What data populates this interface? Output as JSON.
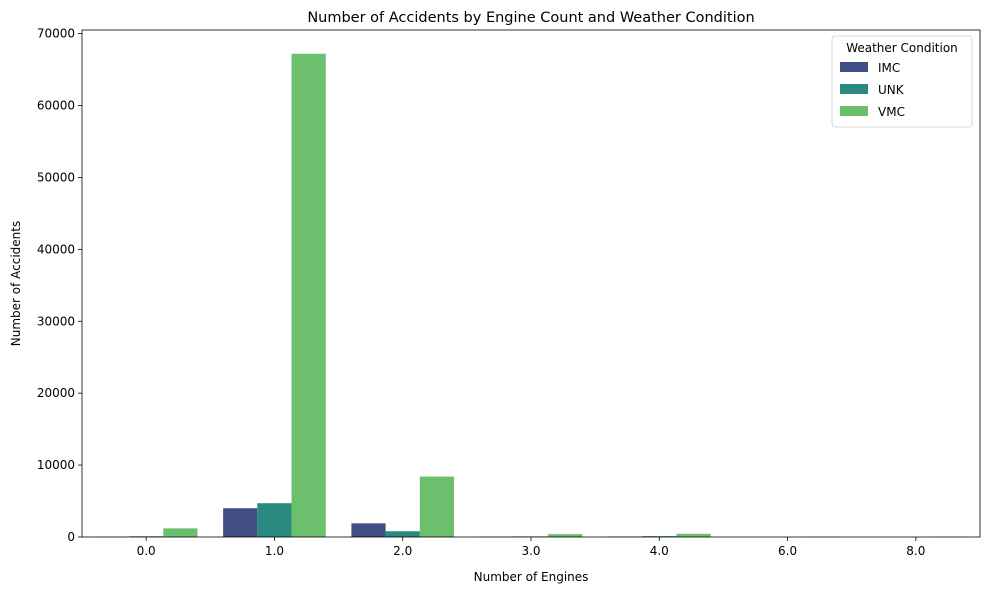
{
  "chart_data": {
    "type": "bar",
    "title": "Number of Accidents by Engine Count and Weather Condition",
    "xlabel": "Number of Engines",
    "ylabel": "Number of Accidents",
    "categories": [
      "0.0",
      "1.0",
      "2.0",
      "3.0",
      "4.0",
      "6.0",
      "8.0"
    ],
    "ylim": [
      0,
      70500
    ],
    "yticks": [
      0,
      10000,
      20000,
      30000,
      40000,
      50000,
      60000,
      70000
    ],
    "grid": false,
    "legend": {
      "title": "Weather Condition",
      "placement": "top-right"
    },
    "series": [
      {
        "name": "IMC",
        "color": "#414e84",
        "values": [
          10,
          4000,
          1900,
          40,
          60,
          0,
          0
        ]
      },
      {
        "name": "UNK",
        "color": "#2b8a80",
        "values": [
          100,
          4700,
          800,
          80,
          120,
          0,
          0
        ]
      },
      {
        "name": "VMC",
        "color": "#6bbf6d",
        "values": [
          1200,
          67200,
          8400,
          400,
          450,
          10,
          5
        ]
      }
    ]
  }
}
